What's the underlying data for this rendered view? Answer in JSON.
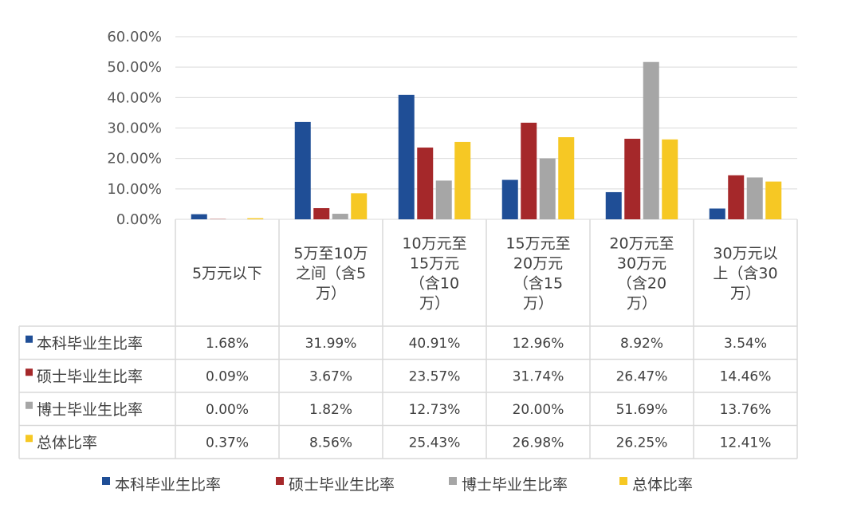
{
  "chart_data": {
    "type": "bar",
    "categories": [
      [
        "5万元以下"
      ],
      [
        "5万至10万",
        "之间（含5",
        "万）"
      ],
      [
        "10万元至",
        "15万元",
        "（含10",
        "万）"
      ],
      [
        "15万元至",
        "20万元",
        "（含15",
        "万）"
      ],
      [
        "20万元至",
        "30万元",
        "（含20",
        "万）"
      ],
      [
        "30万元以",
        "上（含30",
        "万）"
      ]
    ],
    "series": [
      {
        "name": "本科毕业生比率",
        "color": "#1F4E96",
        "values": [
          1.68,
          31.99,
          40.91,
          12.96,
          8.92,
          3.54
        ],
        "labels": [
          "1.68%",
          "31.99%",
          "40.91%",
          "12.96%",
          "8.92%",
          "3.54%"
        ]
      },
      {
        "name": "硕士毕业生比率",
        "color": "#A5282A",
        "values": [
          0.09,
          3.67,
          23.57,
          31.74,
          26.47,
          14.46
        ],
        "labels": [
          "0.09%",
          "3.67%",
          "23.57%",
          "31.74%",
          "26.47%",
          "14.46%"
        ]
      },
      {
        "name": "博士毕业生比率",
        "color": "#A6A6A6",
        "values": [
          0.0,
          1.82,
          12.73,
          20.0,
          51.69,
          13.76
        ],
        "labels": [
          "0.00%",
          "1.82%",
          "12.73%",
          "20.00%",
          "51.69%",
          "13.76%"
        ]
      },
      {
        "name": "总体比率",
        "color": "#F6C824",
        "values": [
          0.37,
          8.56,
          25.43,
          26.98,
          26.25,
          12.41
        ],
        "labels": [
          "0.37%",
          "8.56%",
          "25.43%",
          "26.98%",
          "26.25%",
          "12.41%"
        ]
      }
    ],
    "yticks": [
      "0.00%",
      "10.00%",
      "20.00%",
      "30.00%",
      "40.00%",
      "50.00%",
      "60.00%"
    ],
    "ylim": [
      0,
      60
    ],
    "grid": true,
    "legend_position": "bottom",
    "data_table": true
  }
}
